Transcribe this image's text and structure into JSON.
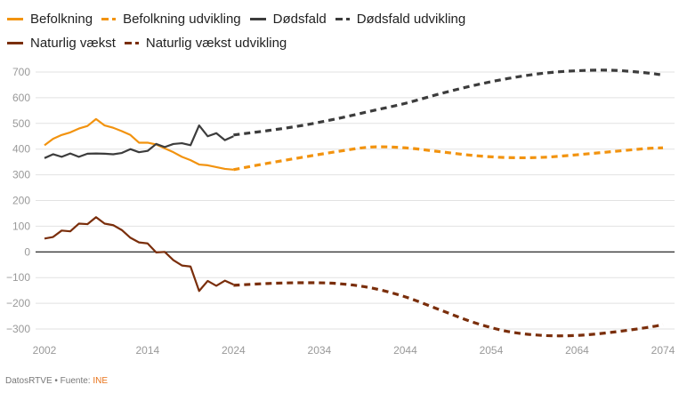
{
  "legend": {
    "row1": [
      {
        "label": "Befolkning",
        "color": "#f2930f",
        "style": "solid"
      },
      {
        "label": "Befolkning udvikling",
        "color": "#f2930f",
        "style": "dashed"
      },
      {
        "label": "Dødsfald",
        "color": "#3c3c3c",
        "style": "solid"
      },
      {
        "label": "Dødsfald udvikling",
        "color": "#3c3c3c",
        "style": "dashed"
      }
    ],
    "row2": [
      {
        "label": "Naturlig vækst",
        "color": "#7a2e0b",
        "style": "solid"
      },
      {
        "label": "Naturlig vækst udvikling",
        "color": "#7a2e0b",
        "style": "dashed"
      }
    ]
  },
  "footer": {
    "credit": "DatosRTVE • Fuente: ",
    "source": "INE"
  },
  "chart_data": {
    "type": "line",
    "title": "",
    "xlabel": "",
    "ylabel": "",
    "xlim": [
      2002,
      2074
    ],
    "ylim": [
      -300,
      700
    ],
    "x_ticks": [
      2002,
      2014,
      2024,
      2034,
      2044,
      2054,
      2064,
      2074
    ],
    "y_ticks": [
      -300,
      -200,
      -100,
      0,
      100,
      200,
      300,
      400,
      500,
      600,
      700
    ],
    "grid": true,
    "legend_position": "top-left",
    "series": [
      {
        "name": "Befolkning",
        "color": "#f2930f",
        "style": "solid",
        "x": [
          2002,
          2003,
          2004,
          2005,
          2006,
          2007,
          2008,
          2009,
          2010,
          2011,
          2012,
          2013,
          2014,
          2015,
          2016,
          2017,
          2018,
          2019,
          2020,
          2021,
          2022,
          2023,
          2024
        ],
        "values": [
          415,
          440,
          455,
          465,
          480,
          490,
          517,
          492,
          483,
          470,
          455,
          425,
          425,
          418,
          403,
          388,
          370,
          357,
          340,
          337,
          330,
          323,
          320
        ]
      },
      {
        "name": "Befolkning udvikling",
        "color": "#f2930f",
        "style": "dashed",
        "x": [
          2024,
          2028,
          2032,
          2036,
          2040,
          2044,
          2048,
          2052,
          2056,
          2060,
          2064,
          2068,
          2072,
          2074
        ],
        "values": [
          320,
          345,
          368,
          390,
          408,
          405,
          390,
          375,
          367,
          368,
          378,
          390,
          402,
          405
        ]
      },
      {
        "name": "Dødsfald",
        "color": "#3c3c3c",
        "style": "solid",
        "x": [
          2002,
          2003,
          2004,
          2005,
          2006,
          2007,
          2008,
          2009,
          2010,
          2011,
          2012,
          2013,
          2014,
          2015,
          2016,
          2017,
          2018,
          2019,
          2020,
          2021,
          2022,
          2023,
          2024
        ],
        "values": [
          365,
          380,
          370,
          383,
          370,
          382,
          383,
          382,
          380,
          385,
          400,
          388,
          393,
          420,
          408,
          420,
          423,
          415,
          492,
          450,
          462,
          435,
          450
        ]
      },
      {
        "name": "Dødsfald udvikling",
        "color": "#3c3c3c",
        "style": "dashed",
        "x": [
          2024,
          2028,
          2032,
          2036,
          2040,
          2044,
          2048,
          2052,
          2056,
          2060,
          2064,
          2068,
          2072,
          2074
        ],
        "values": [
          455,
          472,
          492,
          518,
          548,
          578,
          615,
          648,
          675,
          695,
          705,
          707,
          697,
          688
        ]
      },
      {
        "name": "Naturlig vækst",
        "color": "#7a2e0b",
        "style": "solid",
        "x": [
          2002,
          2003,
          2004,
          2005,
          2006,
          2007,
          2008,
          2009,
          2010,
          2011,
          2012,
          2013,
          2014,
          2015,
          2016,
          2017,
          2018,
          2019,
          2020,
          2021,
          2022,
          2023,
          2024
        ],
        "values": [
          52,
          58,
          83,
          80,
          110,
          108,
          135,
          110,
          104,
          85,
          55,
          37,
          33,
          -2,
          0,
          -32,
          -53,
          -57,
          -152,
          -113,
          -132,
          -112,
          -127
        ]
      },
      {
        "name": "Naturlig vækst udvikling",
        "color": "#7a2e0b",
        "style": "dashed",
        "x": [
          2024,
          2028,
          2032,
          2036,
          2040,
          2044,
          2048,
          2052,
          2056,
          2060,
          2064,
          2068,
          2072,
          2074
        ],
        "values": [
          -130,
          -123,
          -120,
          -123,
          -140,
          -175,
          -225,
          -275,
          -310,
          -325,
          -325,
          -313,
          -295,
          -283
        ]
      }
    ]
  }
}
